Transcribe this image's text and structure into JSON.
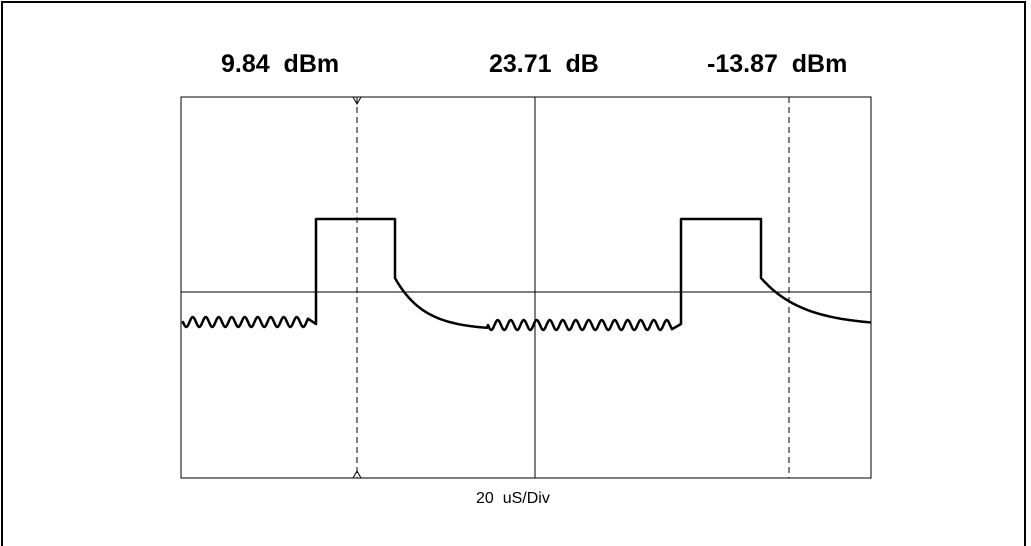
{
  "readouts": {
    "left": "9.84  dBm",
    "center": "23.71  dB",
    "right": "-13.87  dBm"
  },
  "time_scale": "20  uS/Div"
}
